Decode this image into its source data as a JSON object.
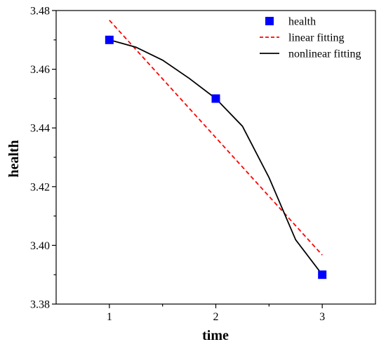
{
  "chart_data": {
    "type": "scatter",
    "xlabel": "time",
    "ylabel": "health",
    "xlim": [
      0.5,
      3.5
    ],
    "ylim": [
      3.38,
      3.48
    ],
    "xticks": [
      1,
      2,
      3
    ],
    "xtick_labels": [
      "1",
      "2",
      "3"
    ],
    "xminor_ticks": [
      1.5,
      2.5
    ],
    "yticks": [
      3.38,
      3.4,
      3.42,
      3.44,
      3.46,
      3.48
    ],
    "ytick_labels": [
      "3.38",
      "3.40",
      "3.42",
      "3.44",
      "3.46",
      "3.48"
    ],
    "yminor_ticks": [
      3.39,
      3.41,
      3.43,
      3.45,
      3.47
    ],
    "grid": false,
    "legend_position": "top-right",
    "series": [
      {
        "name": "health",
        "kind": "scatter",
        "marker": "square",
        "color": "#0000ff",
        "x": [
          1,
          2,
          3
        ],
        "y": [
          3.47,
          3.45,
          3.39
        ]
      },
      {
        "name": "linear fitting",
        "kind": "line",
        "style": "dashed",
        "color": "#ff0000",
        "x": [
          1,
          3
        ],
        "y": [
          3.4767,
          3.3967
        ]
      },
      {
        "name": "nonlinear fitting",
        "kind": "curve",
        "style": "solid",
        "color": "#000000",
        "x": [
          1,
          1.25,
          1.5,
          1.75,
          2,
          2.25,
          2.5,
          2.75,
          3
        ],
        "y": [
          3.47,
          3.4675,
          3.4631,
          3.4569,
          3.45,
          3.4406,
          3.4231,
          3.4019,
          3.39
        ]
      }
    ]
  }
}
